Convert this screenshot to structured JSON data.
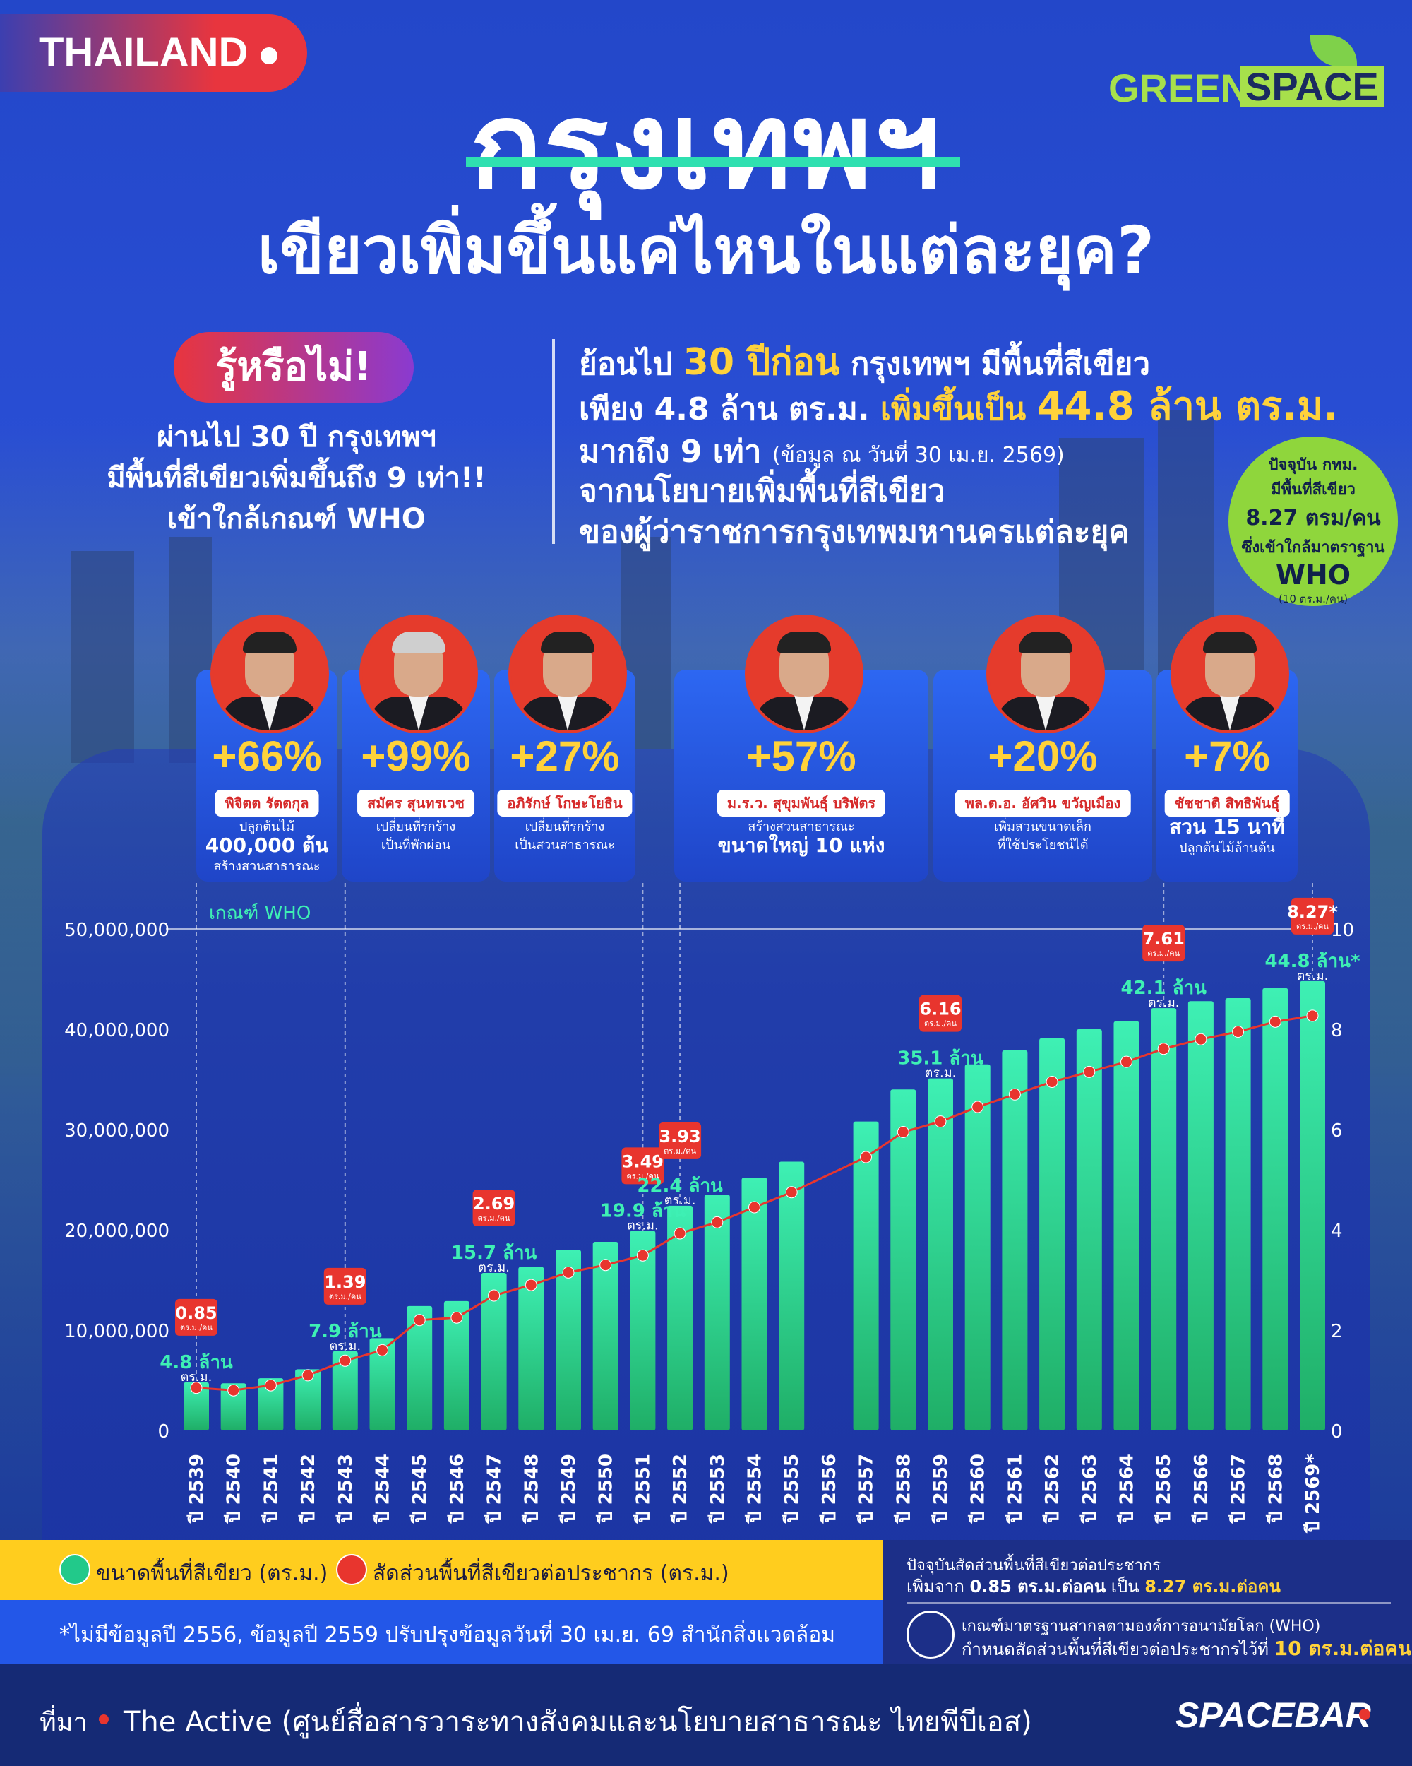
{
  "header": {
    "tag": "THAILAND",
    "brand_green": "GREEN",
    "brand_space": "SPACE",
    "title": "กรุงเทพฯ",
    "subtitle": "เขียวเพิ่มขึ้นแค่ไหนในแต่ละยุค?"
  },
  "left": {
    "badge": "รู้หรือไม่!",
    "line1": "ผ่านไป 30 ปี กรุงเทพฯ",
    "line2": "มีพื้นที่สีเขียวเพิ่มขึ้นถึง 9 เท่า!!",
    "line3": "เข้าใกล้เกณฑ์ WHO"
  },
  "right": {
    "r1a": "ย้อนไป ",
    "r1b": "30 ปีก่อน",
    "r1c": " กรุงเทพฯ มีพื้นที่สีเขียว",
    "r2a": "เพียง 4.8 ล้าน ตร.ม. ",
    "r2b": "เพิ่มขึ้นเป็น ",
    "r2c": "44.8 ล้าน ตร.ม.",
    "r3a": "มากถึง 9 เท่า ",
    "r3b": "(ข้อมูล ณ วันที่ 30 เม.ย. 2569)",
    "r4": "จากนโยบายเพิ่มพื้นที่สีเขียว",
    "r5": "ของผู้ว่าราชการกรุงเทพมหานครแต่ละยุค"
  },
  "circle": {
    "l1": "ปัจจุบัน กทม.",
    "l2": "มีพื้นที่สีเขียว",
    "l3": "8.27 ตรม/คน",
    "l4": "ซึ่งเข้าใกล้มาตราฐาน",
    "l5": "WHO",
    "l6": "(10 ตร.ม./คน)"
  },
  "governors": [
    {
      "pct": "+66%",
      "name": "พิจิตต รัตตกุล",
      "d1": "ปลูกต้นไม้",
      "d2": "400,000 ต้น",
      "d3": "สร้างสวนสาธารณะ"
    },
    {
      "pct": "+99%",
      "name": "สมัคร สุนทรเวช",
      "d1": "เปลี่ยนที่รกร้าง",
      "d2": "",
      "d3": "เป็นที่พักผ่อน"
    },
    {
      "pct": "+27%",
      "name": "อภิรักษ์ โกษะโยธิน",
      "d1": "เปลี่ยนที่รกร้าง",
      "d2": "",
      "d3": "เป็นสวนสาธารณะ"
    },
    {
      "pct": "+57%",
      "name": "ม.ร.ว. สุขุมพันธุ์ บริพัตร",
      "d1": "สร้างสวนสาธารณะ",
      "d2": "ขนาดใหญ่ 10 แห่ง",
      "d3": ""
    },
    {
      "pct": "+20%",
      "name": "พล.ต.อ. อัศวิน ขวัญเมือง",
      "d1": "เพิ่มสวนขนาดเล็ก",
      "d2": "",
      "d3": "ที่ใช้ประโยชน์ได้"
    },
    {
      "pct": "+7%",
      "name": "ชัชชาติ สิทธิพันธุ์",
      "d1": "",
      "d2": "สวน 15 นาที",
      "d3": "ปลูกต้นไม้ล้านต้น"
    }
  ],
  "chart_data": {
    "type": "bar",
    "who_label": "เกณฑ์ WHO",
    "categories": [
      "ปี 2539",
      "ปี 2540",
      "ปี 2541",
      "ปี 2542",
      "ปี 2543",
      "ปี 2544",
      "ปี 2545",
      "ปี 2546",
      "ปี 2547",
      "ปี 2548",
      "ปี 2549",
      "ปี 2550",
      "ปี 2551",
      "ปี 2552",
      "ปี 2553",
      "ปี 2554",
      "ปี 2555",
      "ปี 2556",
      "ปี 2557",
      "ปี 2558",
      "ปี 2559",
      "ปี 2560",
      "ปี 2561",
      "ปี 2562",
      "ปี 2563",
      "ปี 2564",
      "ปี 2565",
      "ปี 2566",
      "ปี 2567",
      "ปี 2568",
      "ปี 2569*"
    ],
    "series": [
      {
        "name": "ขนาดพื้นที่สีเขียว (ตร.ม.)",
        "axis": "left",
        "color": "#22c98a",
        "values": [
          4800000,
          4700000,
          5200000,
          6100000,
          7900000,
          9200000,
          12400000,
          12900000,
          15700000,
          16300000,
          18000000,
          18800000,
          19900000,
          22400000,
          23500000,
          25200000,
          26800000,
          null,
          30800000,
          34000000,
          35100000,
          36500000,
          37900000,
          39100000,
          40000000,
          40800000,
          42100000,
          42800000,
          43100000,
          44100000,
          44800000
        ]
      },
      {
        "name": "สัดส่วนพื้นที่สีเขียวต่อประชากร (ตร.ม.)",
        "axis": "right",
        "color": "#e8352e",
        "values": [
          0.85,
          0.8,
          0.9,
          1.1,
          1.39,
          1.6,
          2.2,
          2.25,
          2.69,
          2.9,
          3.15,
          3.3,
          3.49,
          3.93,
          4.15,
          4.45,
          4.75,
          null,
          5.45,
          5.95,
          6.16,
          6.45,
          6.7,
          6.95,
          7.15,
          7.35,
          7.61,
          7.8,
          7.95,
          8.15,
          8.27
        ]
      }
    ],
    "ylim_left": [
      0,
      50000000
    ],
    "yticks_left": [
      "0",
      "10,000,000",
      "20,000,000",
      "30,000,000",
      "40,000,000",
      "50,000,000"
    ],
    "ylim_right": [
      0,
      10
    ],
    "yticks_right": [
      "0",
      "2",
      "4",
      "6",
      "8",
      "10"
    ],
    "annotations": [
      {
        "i": 0,
        "area": "4.8 ล้าน",
        "ratio": "0.85"
      },
      {
        "i": 4,
        "area": "7.9 ล้าน",
        "ratio": "1.39"
      },
      {
        "i": 8,
        "area": "15.7 ล้าน",
        "ratio": "2.69"
      },
      {
        "i": 12,
        "area": "19.9 ล้าน",
        "ratio": "3.49"
      },
      {
        "i": 13,
        "area": "22.4 ล้าน",
        "ratio": "3.93"
      },
      {
        "i": 20,
        "area": "35.1 ล้าน",
        "ratio": "6.16"
      },
      {
        "i": 26,
        "area": "42.1 ล้าน",
        "ratio": "7.61"
      },
      {
        "i": 30,
        "area": "44.8 ล้าน*",
        "ratio": "8.27*"
      }
    ],
    "unit_area": "ตร.ม.",
    "unit_ratio": "ตร.ม./คน"
  },
  "legend": {
    "green": "ขนาดพื้นที่สีเขียว (ตร.ม.)",
    "red": "สัดส่วนพื้นที่สีเขียวต่อประชากร (ตร.ม.)"
  },
  "footnote": "*ไม่มีข้อมูลปี 2556, ข้อมูลปี 2559 ปรับปรุงข้อมูลวันที่ 30 เม.ย. 69 สำนักสิ่งแวดล้อม",
  "info": {
    "a1": "ปัจจุบันสัดส่วนพื้นที่สีเขียวต่อประชากร",
    "a2": "เพิ่มจาก ",
    "a3": "0.85 ตร.ม.ต่อคน",
    "a4": " เป็น ",
    "a5": "8.27 ตร.ม.ต่อคน",
    "b1": "เกณฑ์มาตรฐานสากลตามองค์การอนามัยโลก (WHO)",
    "b2": "กำหนดสัดส่วนพื้นที่สีเขียวต่อประชากรไว้ที่ ",
    "b3": "10 ตร.ม.ต่อคน"
  },
  "source": {
    "label": "ที่มา",
    "text": "The Active (ศูนย์สื่อสารวาระทางสังคมและนโยบายสาธารณะ ไทยพีบีเอส)",
    "brand": "SPACEBAR"
  }
}
